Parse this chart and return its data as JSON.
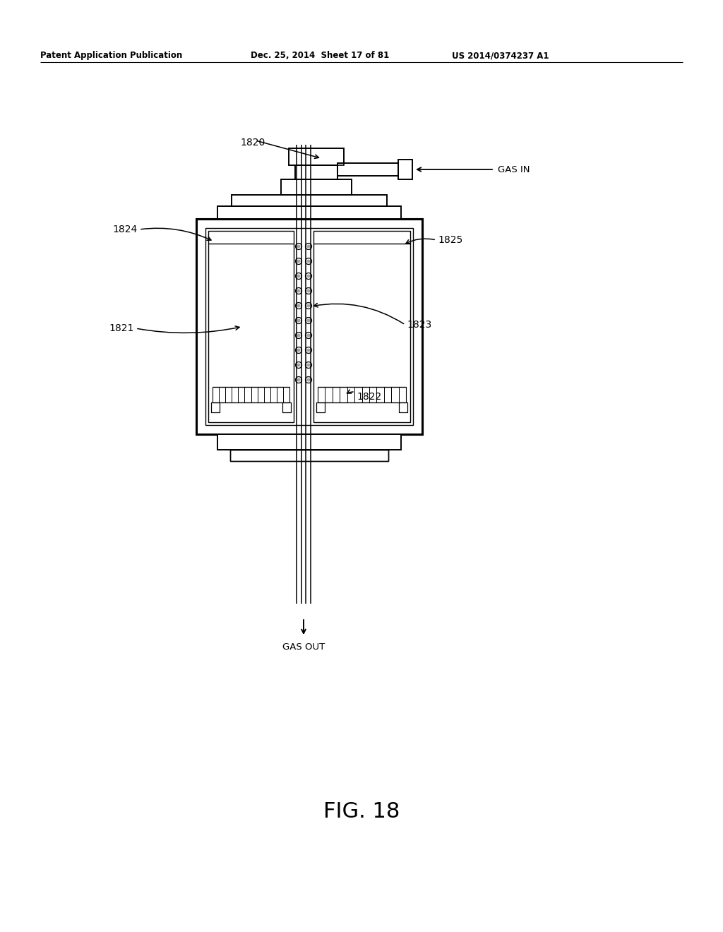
{
  "bg_color": "#ffffff",
  "line_color": "#000000",
  "header_left": "Patent Application Publication",
  "header_mid": "Dec. 25, 2014  Sheet 17 of 81",
  "header_right": "US 2014/0374237 A1",
  "fig_label": "FIG. 18",
  "label_1820": "1820",
  "label_1821": "1821",
  "label_1822": "1822",
  "label_1823": "1823",
  "label_1824": "1824",
  "label_1825": "1825",
  "gas_in": "GAS IN",
  "gas_out": "GAS OUT"
}
